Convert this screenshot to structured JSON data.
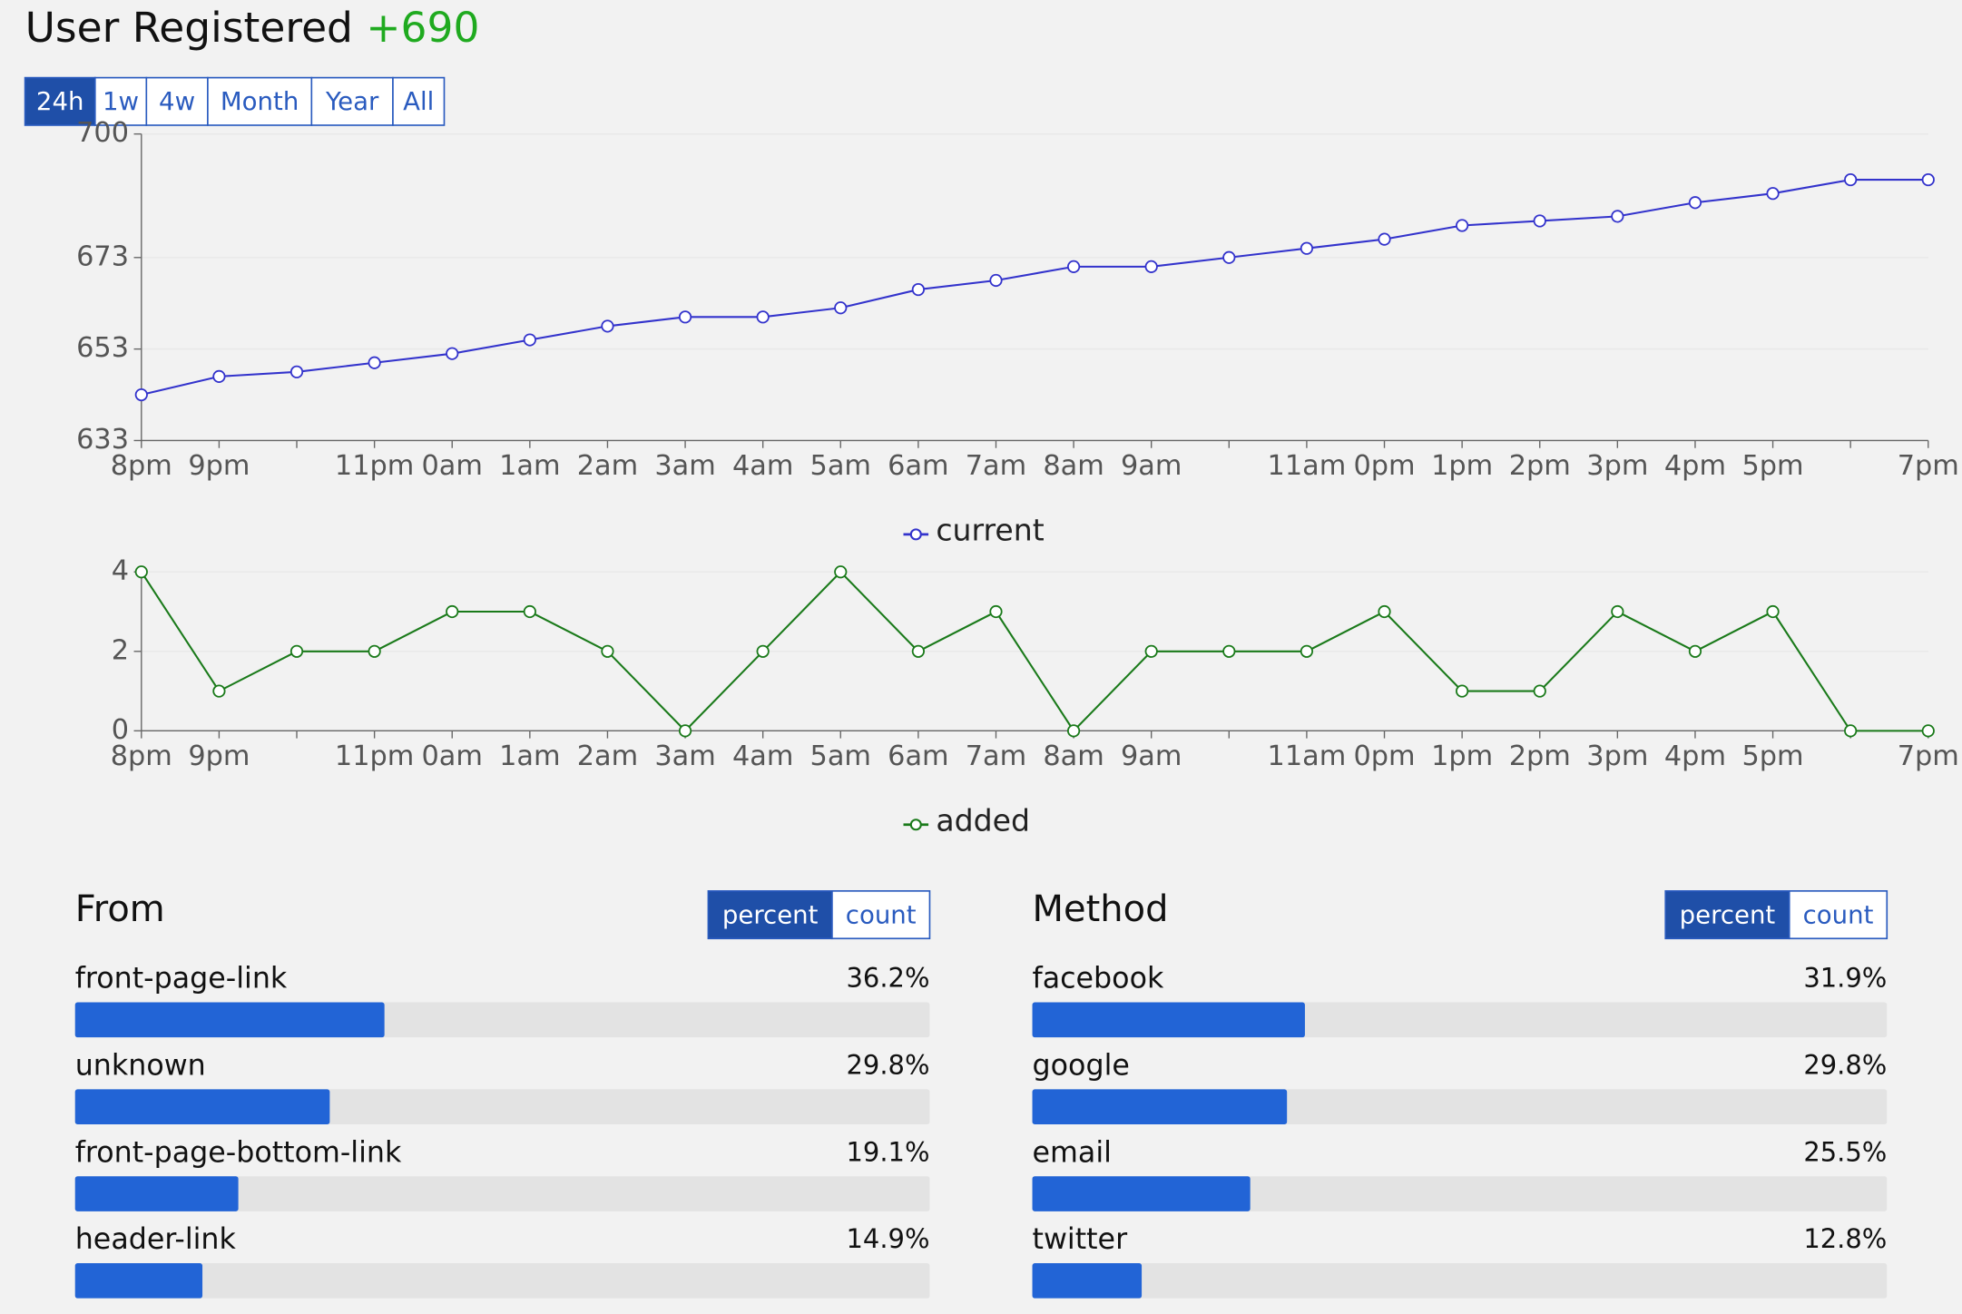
{
  "header": {
    "title": "User Registered",
    "delta": "+690"
  },
  "tabs": {
    "options": [
      "24h",
      "1w",
      "4w",
      "Month",
      "Year",
      "All"
    ],
    "active": 0
  },
  "chart_data": [
    {
      "type": "line",
      "categories": [
        "8pm",
        "9pm",
        null,
        "11pm",
        "0am",
        "1am",
        "2am",
        "3am",
        "4am",
        "5am",
        "6am",
        "7am",
        "8am",
        "9am",
        null,
        "11am",
        "0pm",
        "1pm",
        "2pm",
        "3pm",
        "4pm",
        "5pm",
        null,
        "7pm"
      ],
      "series": [
        {
          "name": "current",
          "color": "#3333cc",
          "values": [
            643,
            647,
            648,
            650,
            652,
            655,
            658,
            660,
            660,
            662,
            666,
            668,
            671,
            671,
            673,
            675,
            677,
            680,
            681,
            682,
            685,
            687,
            690,
            690
          ]
        }
      ],
      "ylim": [
        633,
        700
      ],
      "yticks": [
        633,
        653,
        673,
        700
      ],
      "grid": true
    },
    {
      "type": "line",
      "categories": [
        "8pm",
        "9pm",
        null,
        "11pm",
        "0am",
        "1am",
        "2am",
        "3am",
        "4am",
        "5am",
        "6am",
        "7am",
        "8am",
        "9am",
        null,
        "11am",
        "0pm",
        "1pm",
        "2pm",
        "3pm",
        "4pm",
        "5pm",
        null,
        "7pm"
      ],
      "series": [
        {
          "name": "added",
          "color": "#1a7a1a",
          "values": [
            4,
            1,
            2,
            2,
            3,
            3,
            2,
            0,
            2,
            4,
            2,
            3,
            0,
            2,
            2,
            2,
            3,
            1,
            1,
            3,
            2,
            3,
            0,
            0
          ]
        }
      ],
      "ylim": [
        0,
        4
      ],
      "yticks": [
        0,
        2,
        4
      ],
      "grid": true
    },
    {
      "type": "hbar",
      "title": "From",
      "toggle": [
        "percent",
        "count"
      ],
      "toggle_active": 0,
      "categories": [
        "front-page-link",
        "unknown",
        "front-page-bottom-link",
        "header-link"
      ],
      "values": [
        36.2,
        29.8,
        19.1,
        14.9
      ],
      "value_labels": [
        "36.2%",
        "29.8%",
        "19.1%",
        "14.9%"
      ],
      "xlim": [
        0,
        100
      ],
      "color": "#2264d6"
    },
    {
      "type": "hbar",
      "title": "Method",
      "toggle": [
        "percent",
        "count"
      ],
      "toggle_active": 0,
      "categories": [
        "facebook",
        "google",
        "email",
        "twitter"
      ],
      "values": [
        31.9,
        29.8,
        25.5,
        12.8
      ],
      "value_labels": [
        "31.9%",
        "29.8%",
        "25.5%",
        "12.8%"
      ],
      "xlim": [
        0,
        100
      ],
      "color": "#2264d6"
    }
  ]
}
